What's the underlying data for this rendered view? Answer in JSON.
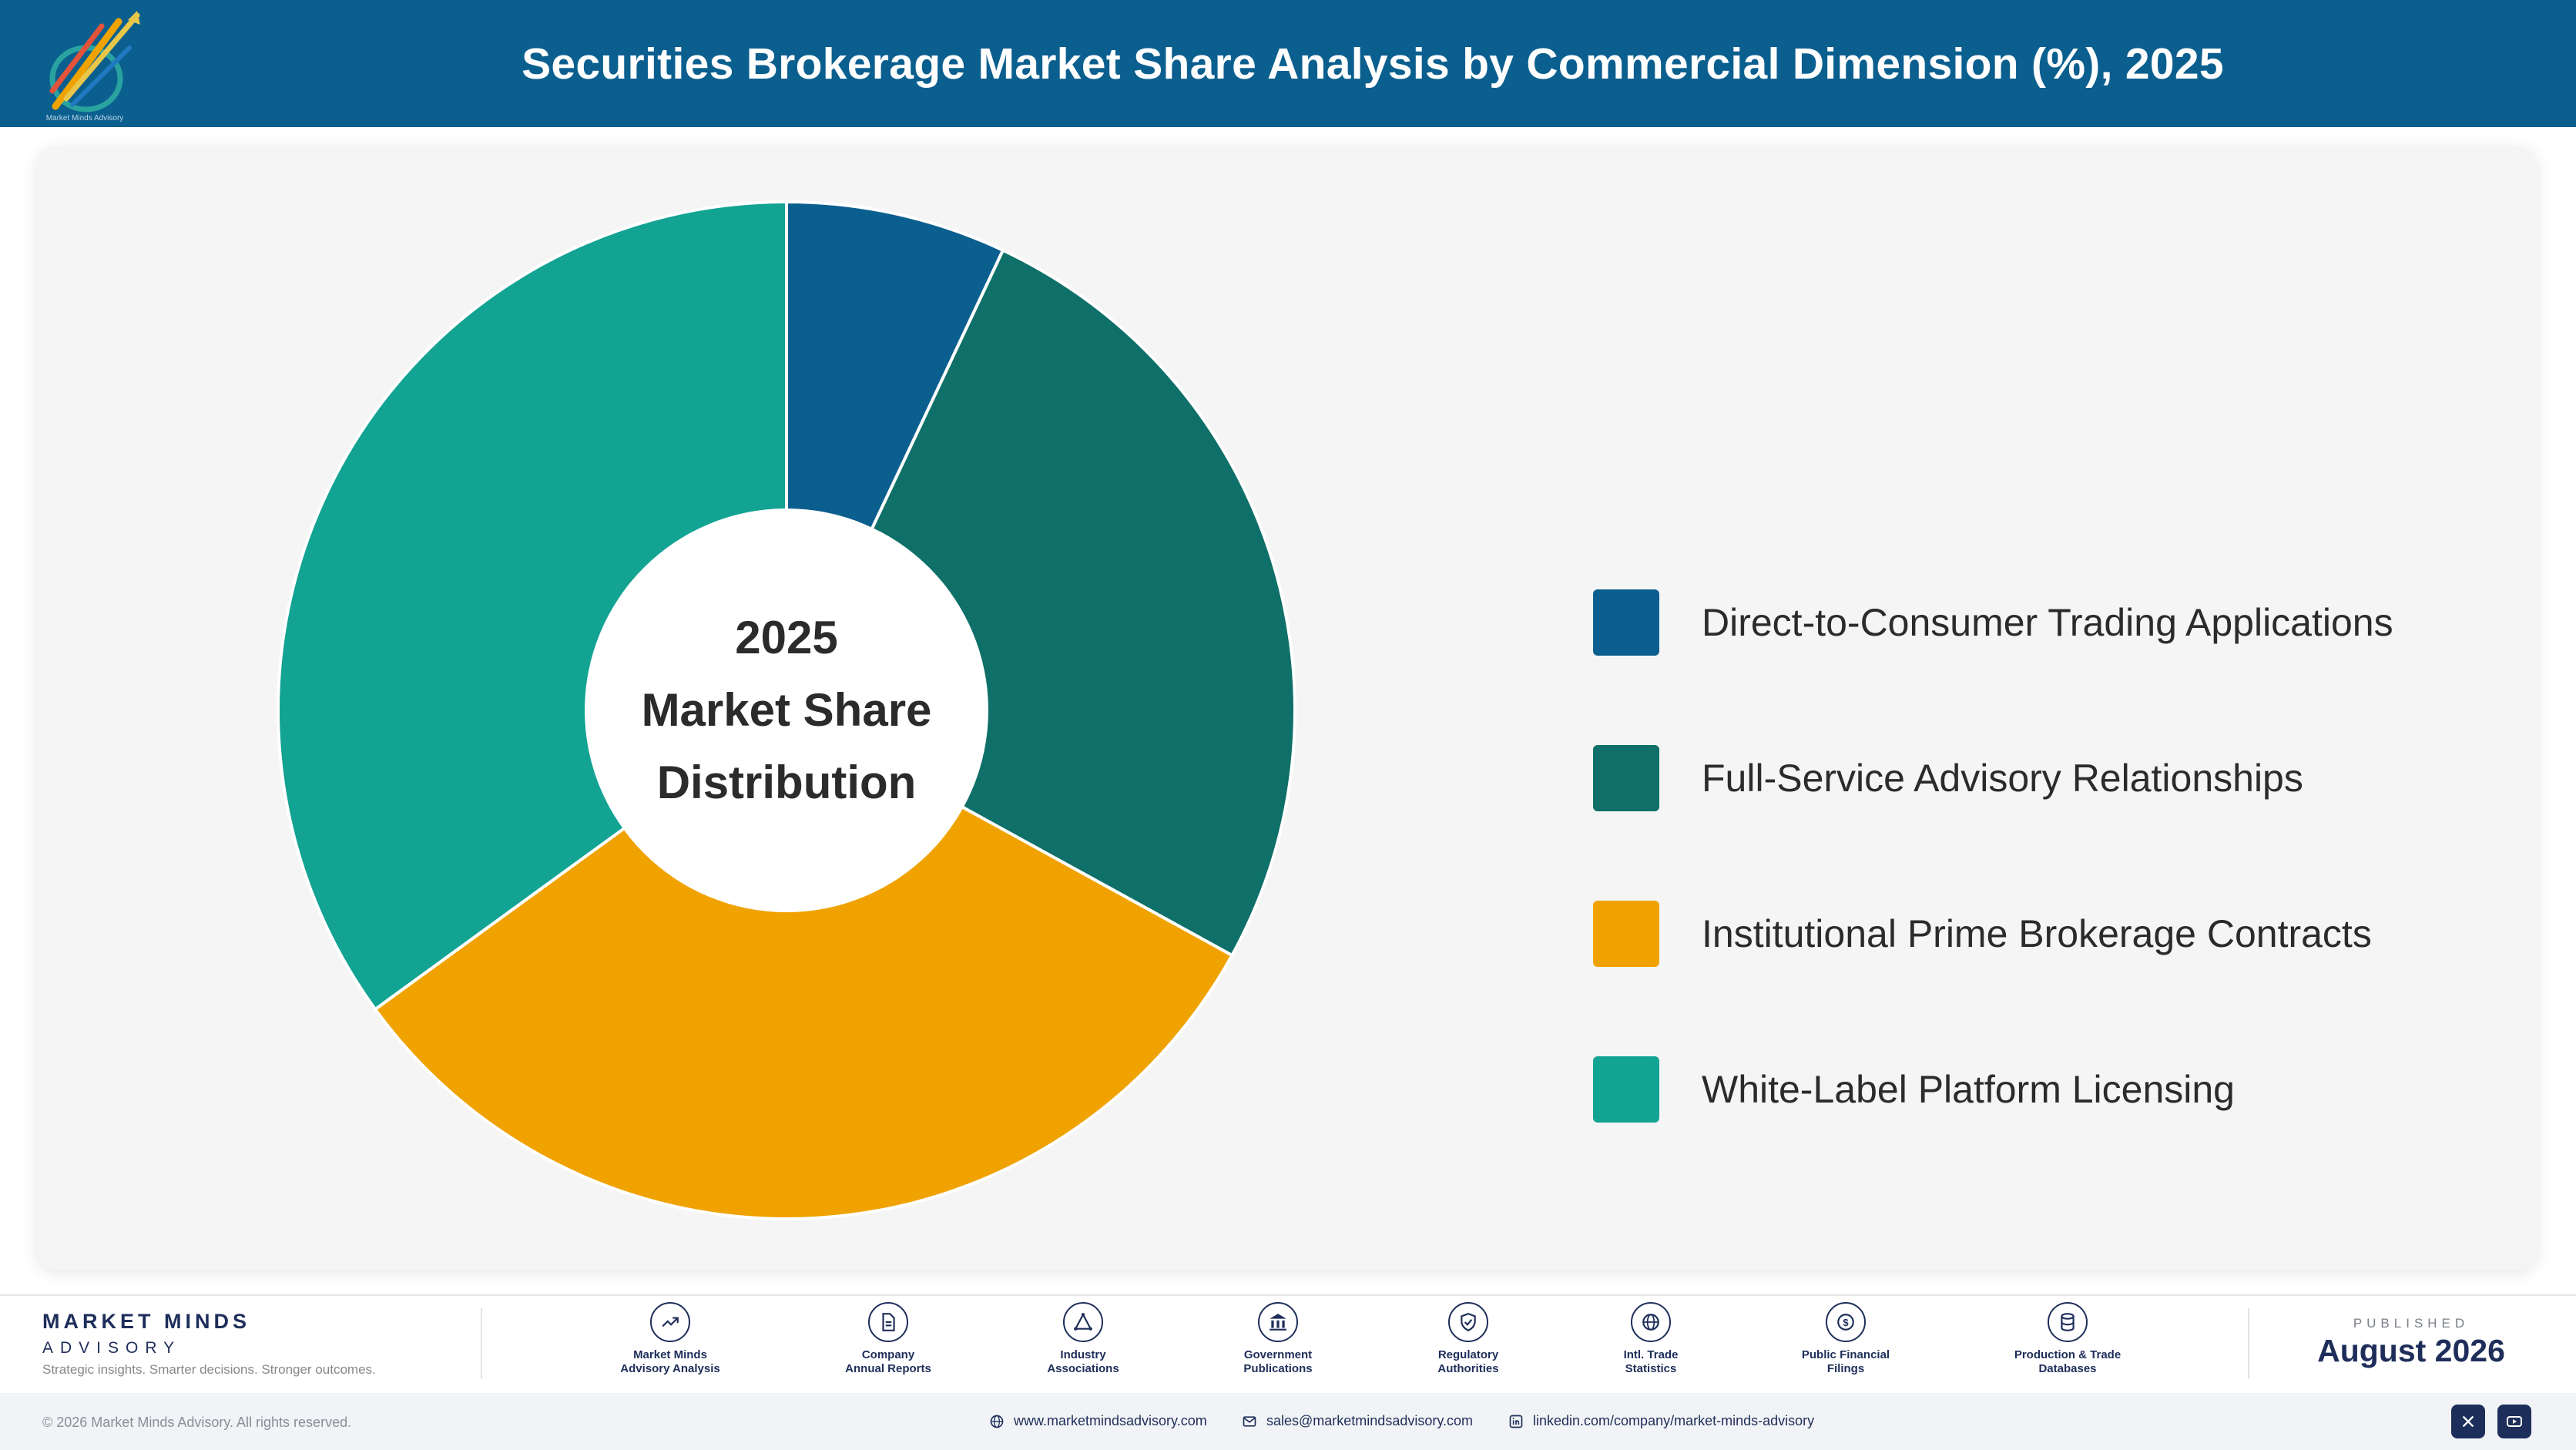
{
  "header": {
    "title": "Securities Brokerage Market Share Analysis by Commercial Dimension (%), 2025",
    "logo_icon": "rising-arrows-logo-icon",
    "logo_caption": "Market Minds Advisory"
  },
  "chart_data": {
    "type": "pie",
    "donut": true,
    "title": "Securities Brokerage Market Share Analysis by Commercial Dimension (%), 2025",
    "center_label": [
      "2025",
      "Market Share",
      "Distribution"
    ],
    "legend_position": "right",
    "slices": [
      {
        "label": "Direct-to-Consumer Trading Applications",
        "value": 7,
        "color": "#0b5f8f"
      },
      {
        "label": "Full-Service Advisory Relationships",
        "value": 26,
        "color": "#0e7068"
      },
      {
        "label": "Institutional Prime Brokerage Contracts",
        "value": 32,
        "color": "#f0a300"
      },
      {
        "label": "White-Label Platform Licensing",
        "value": 35,
        "color": "#12a393"
      }
    ]
  },
  "footer": {
    "brand_name": "MARKET MINDS",
    "brand_sub": "ADVISORY",
    "tagline": "Strategic insights. Smarter decisions. Stronger outcomes.",
    "sources": [
      {
        "label": "Market Minds\nAdvisory Analysis",
        "icon": "trend-line-icon"
      },
      {
        "label": "Company\nAnnual Reports",
        "icon": "document-icon"
      },
      {
        "label": "Industry\nAssociations",
        "icon": "network-icon"
      },
      {
        "label": "Government\nPublications",
        "icon": "building-icon"
      },
      {
        "label": "Regulatory\nAuthorities",
        "icon": "shield-icon"
      },
      {
        "label": "Intl. Trade\nStatistics",
        "icon": "globe-icon"
      },
      {
        "label": "Public Financial\nFilings",
        "icon": "coin-icon"
      },
      {
        "label": "Production & Trade\nDatabases",
        "icon": "database-icon"
      }
    ],
    "published_label": "PUBLISHED",
    "published_date": "August 2026",
    "copyright": "© 2026 Market Minds Advisory. All rights reserved.",
    "website": "www.marketmindsadvisory.com",
    "email": "sales@marketmindsadvisory.com",
    "linkedin": "linkedin.com/company/market-minds-advisory",
    "social_icons": [
      "x-icon",
      "youtube-icon"
    ]
  }
}
